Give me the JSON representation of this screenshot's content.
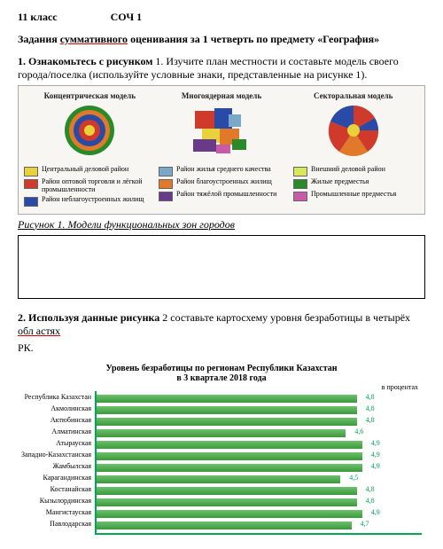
{
  "header": {
    "grade": "11 класс",
    "test": "СОЧ 1"
  },
  "title_pre": "Задания ",
  "title_underlined": "суммативного",
  "title_post": " оценивания за 1 четверть по предмету «География»",
  "task1": {
    "label": "1. Ознакомьтесь с рисунком",
    "label_num": " 1. ",
    "text": "Изучите план местности и составьте модель своего города/поселка (используйте условные знаки, представленные на рисунке 1)."
  },
  "fig1": {
    "titles": [
      "Концентрическая модель",
      "Многоядерная модель",
      "Секторальная модель"
    ],
    "legend_cols": [
      [
        {
          "color": "#e8d13a",
          "text": "Центральный деловой район"
        },
        {
          "color": "#d03a2a",
          "text": "Район оптовой торговли и лёгкой промышленности"
        },
        {
          "color": "#2a4aa8",
          "text": "Район неблагоустроенных жилищ"
        }
      ],
      [
        {
          "color": "#7aa8c8",
          "text": "Район жилья среднего качества"
        },
        {
          "color": "#e07a2a",
          "text": "Район благоустроенных жилищ"
        },
        {
          "color": "#6a3a8a",
          "text": "Район тяжёлой промышленности"
        }
      ],
      [
        {
          "color": "#d8e85a",
          "text": "Внешний деловой район"
        },
        {
          "color": "#2a8a2a",
          "text": "Жилые предместья"
        },
        {
          "color": "#c85aa8",
          "text": "Промышленные предместья"
        }
      ]
    ],
    "caption_pre": "Рисунок 1.",
    "caption_post": " Модели функциональных зон городов"
  },
  "task2": {
    "label": "2. Используя данные рисунка",
    "label_post": " 2 составьте картосхему уровня безработицы в четырёх ",
    "underlined_end": "обл астях",
    "rk": "РК."
  },
  "chart": {
    "title": "Уровень безработицы по регионам Республики Казахстан",
    "title2": "в 3 квартале 2018 года",
    "unit": "в процентах",
    "max": 6.0,
    "rows": [
      {
        "label": "Республика Казахстан",
        "val": 4.8
      },
      {
        "label": "Акмолинская",
        "val": 4.8
      },
      {
        "label": "Актюбинская",
        "val": 4.8
      },
      {
        "label": "Алматинская",
        "val": 4.6
      },
      {
        "label": "Атырауская",
        "val": 4.9
      },
      {
        "label": "Западно-Казахстанская",
        "val": 4.9
      },
      {
        "label": "Жамбылская",
        "val": 4.9
      },
      {
        "label": "Карагандинская",
        "val": 4.5
      },
      {
        "label": "Костанайская",
        "val": 4.8
      },
      {
        "label": "Кызылординская",
        "val": 4.8
      },
      {
        "label": "Мангистауская",
        "val": 4.9
      },
      {
        "label": "Павлодарская",
        "val": 4.7
      }
    ]
  }
}
